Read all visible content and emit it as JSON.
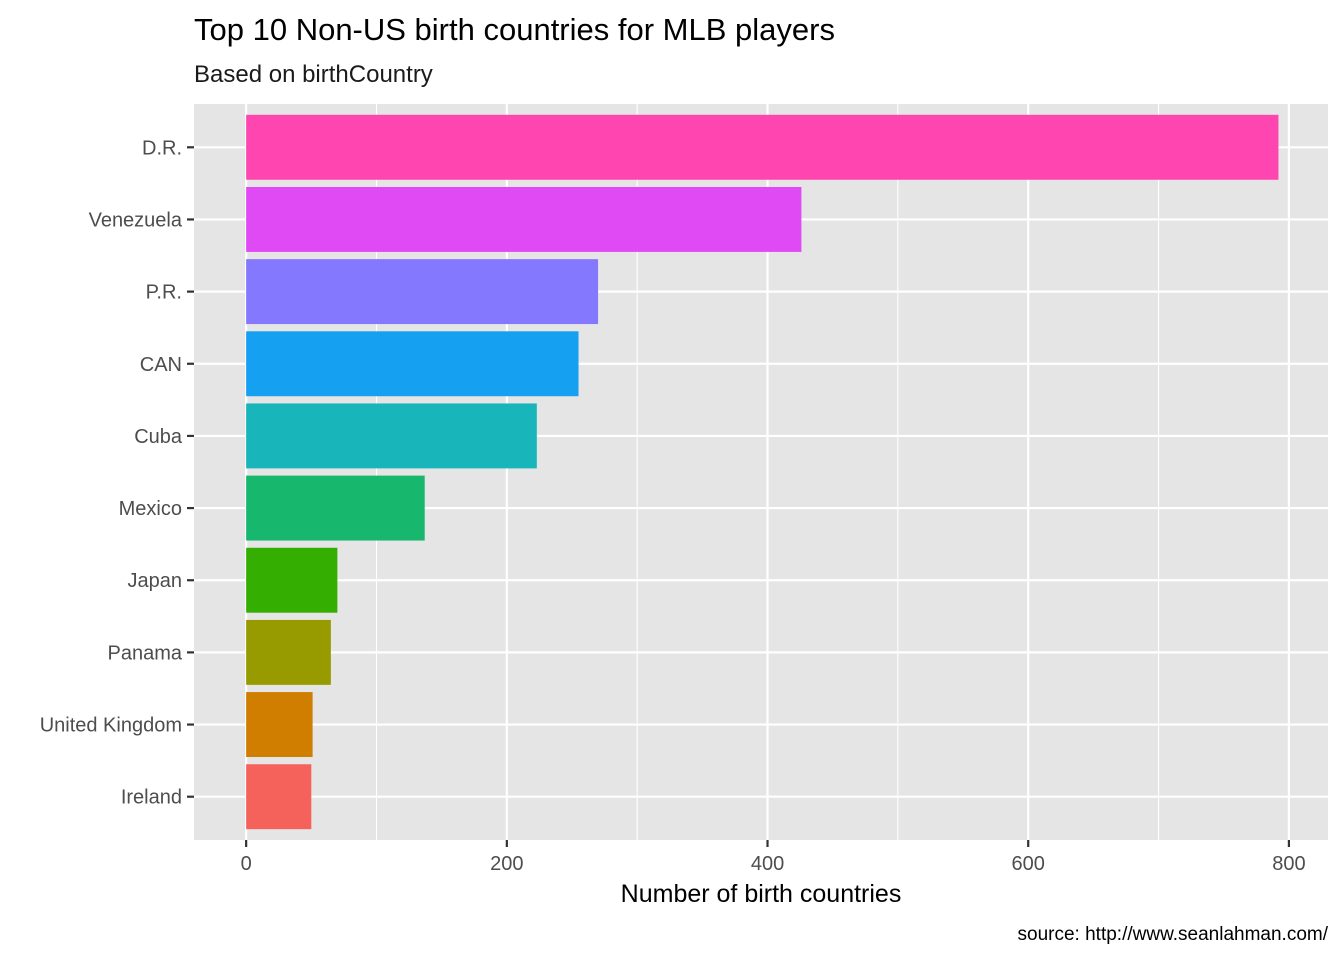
{
  "chart_data": {
    "type": "bar",
    "orientation": "horizontal",
    "title": "Top 10 Non-US birth countries for MLB players",
    "subtitle": "Based on birthCountry",
    "xlabel": "Number of birth countries",
    "ylabel": "",
    "caption": "source: http://www.seanlahman.com/",
    "categories": [
      "D.R.",
      "Venezuela",
      "P.R.",
      "CAN",
      "Cuba",
      "Mexico",
      "Japan",
      "Panama",
      "United Kingdom",
      "Ireland"
    ],
    "values": [
      792,
      426,
      270,
      255,
      223,
      137,
      70,
      65,
      51,
      50
    ],
    "colors": [
      "#FF45B0",
      "#E04AF5",
      "#8478FF",
      "#16A0F2",
      "#18B5BA",
      "#18B76E",
      "#34AE00",
      "#979B00",
      "#CF7E00",
      "#F5625C"
    ],
    "xlim": [
      -40,
      830
    ],
    "x_ticks": [
      0,
      200,
      400,
      600,
      800
    ],
    "x_minor_ticks": [
      100,
      300,
      500,
      700
    ],
    "grid": true,
    "legend": "none",
    "panel_background": "#E5E5E5"
  }
}
